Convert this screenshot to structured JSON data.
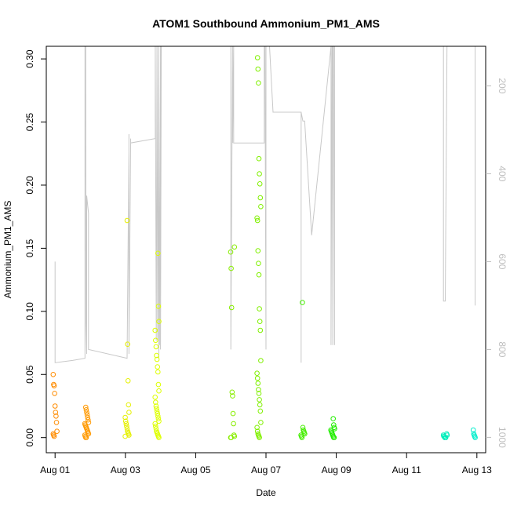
{
  "chart_data": {
    "type": "scatter",
    "title": "ATOM1 Southbound Ammonium_PM1_AMS",
    "xlabel": "Date",
    "ylabel": "Ammonium_PM1_AMS",
    "x_ticks": [
      "Aug 01",
      "Aug 03",
      "Aug 05",
      "Aug 07",
      "Aug 09",
      "Aug 11",
      "Aug 13"
    ],
    "xlim_days": [
      0.75,
      13.25
    ],
    "ylim": [
      -0.012,
      0.31
    ],
    "y_ticks": [
      "0.00",
      "0.05",
      "0.10",
      "0.15",
      "0.20",
      "0.25",
      "0.30"
    ],
    "y_tick_values": [
      0,
      0.05,
      0.1,
      0.15,
      0.2,
      0.25,
      0.3
    ],
    "y2_ticks": [
      "200",
      "400",
      "600",
      "800",
      "1000"
    ],
    "y2_tick_values": [
      200,
      400,
      600,
      800,
      1000
    ],
    "y2lim": [
      1035,
      110
    ],
    "y2_reversed": true,
    "grid": false,
    "points": [
      {
        "day": 1.0,
        "color": "#ff8c00",
        "values": [
          0.05,
          0.042,
          0.041,
          0.035,
          0.025,
          0.02,
          0.017,
          0.012,
          0.005,
          0.003,
          0.002,
          0.001
        ]
      },
      {
        "day": 1.9,
        "color": "#ff9900",
        "values": [
          0.024,
          0.022,
          0.02,
          0.018,
          0.016,
          0.014,
          0.012,
          0.011,
          0.01,
          0.009,
          0.008,
          0.007,
          0.006,
          0.005,
          0.004,
          0.003,
          0.002,
          0.001,
          0.0,
          0.0
        ]
      },
      {
        "day": 3.05,
        "color": "#e5f000",
        "values": [
          0.172,
          0.074,
          0.045,
          0.026,
          0.02,
          0.016,
          0.013,
          0.011,
          0.009,
          0.007,
          0.005,
          0.004,
          0.003,
          0.002,
          0.001
        ]
      },
      {
        "day": 3.9,
        "color": "#ddff00",
        "values": [
          0.146,
          0.104,
          0.092,
          0.085,
          0.077,
          0.072,
          0.065,
          0.062,
          0.056,
          0.052,
          0.042,
          0.037,
          0.032,
          0.028,
          0.025,
          0.023,
          0.021,
          0.019,
          0.017,
          0.015,
          0.013,
          0.011,
          0.009,
          0.007,
          0.005,
          0.004,
          0.003,
          0.002,
          0.001,
          0.0
        ]
      },
      {
        "day": 6.05,
        "color": "#88ee00",
        "values": [
          0.151,
          0.147,
          0.134,
          0.103,
          0.036,
          0.033,
          0.019,
          0.011,
          0.002,
          0.001,
          0.0,
          0.0
        ]
      },
      {
        "day": 6.8,
        "color": "#80f000",
        "values": [
          0.301,
          0.292,
          0.281,
          0.221,
          0.209,
          0.201,
          0.19,
          0.183,
          0.174,
          0.172,
          0.148,
          0.138,
          0.129,
          0.102,
          0.092,
          0.085,
          0.061,
          0.051,
          0.047,
          0.043,
          0.038,
          0.035,
          0.03,
          0.026,
          0.021,
          0.012,
          0.008,
          0.005,
          0.003,
          0.002,
          0.001,
          0.0
        ]
      },
      {
        "day": 8.05,
        "color": "#44ee00",
        "values": [
          0.107,
          0.008,
          0.006,
          0.005,
          0.004,
          0.003,
          0.002,
          0.001,
          0.0
        ]
      },
      {
        "day": 8.9,
        "color": "#22ee00",
        "values": [
          0.015,
          0.01,
          0.008,
          0.007,
          0.006,
          0.005,
          0.004,
          0.003,
          0.002,
          0.001,
          0.0,
          0.0
        ]
      },
      {
        "day": 12.1,
        "color": "#00eebb",
        "values": [
          0.003,
          0.002,
          0.002,
          0.001,
          0.001,
          0.0,
          0.0,
          0.0
        ]
      },
      {
        "day": 12.95,
        "color": "#00eecc",
        "values": [
          0.006,
          0.003,
          0.002,
          0.001,
          0.0
        ]
      }
    ],
    "track": {
      "color": "#c8c8c8",
      "day": [
        1.0,
        1.0,
        1.0,
        1.5,
        1.85,
        1.85,
        1.85,
        1.86,
        1.87,
        1.88,
        1.9,
        1.9,
        1.9,
        1.95,
        1.95,
        1.95,
        3.05,
        3.1,
        3.1,
        3.1,
        3.1,
        3.15,
        3.15,
        3.15,
        3.15,
        3.85,
        3.85,
        3.85,
        3.88,
        3.9,
        3.92,
        3.95,
        3.97,
        4.0,
        4.0,
        4.02,
        4.02,
        4.02,
        4.02,
        3.95,
        3.95,
        3.95,
        5.0,
        6.0,
        6.0,
        6.05,
        6.05,
        6.05,
        6.05,
        6.08,
        6.08,
        6.08,
        6.08,
        6.1,
        6.1,
        6.95,
        6.95,
        6.95,
        6.95,
        6.95,
        6.97,
        7.0,
        7.0,
        7.02,
        7.02,
        7.1,
        7.1,
        7.1,
        7.1,
        7.2,
        8.0,
        8.0,
        8.0,
        8.05,
        8.1,
        8.1,
        8.3,
        8.85,
        8.85,
        8.88,
        8.9,
        8.9,
        8.92,
        8.95,
        8.95,
        8.95,
        9.0,
        12.05,
        12.05,
        12.05,
        12.1,
        12.15,
        12.2,
        12.95,
        12.95,
        12.95
      ],
      "alt": [
        600,
        630,
        830,
        825,
        820,
        640,
        110,
        110,
        110,
        740,
        810,
        480,
        450,
        490,
        610,
        800,
        820,
        350,
        340,
        310,
        810,
        340,
        320,
        340,
        330,
        320,
        110,
        110,
        780,
        110,
        780,
        110,
        790,
        110,
        800,
        110,
        110,
        110,
        110,
        820,
        820,
        110,
        110,
        110,
        800,
        110,
        330,
        110,
        330,
        110,
        110,
        330,
        330,
        330,
        330,
        330,
        110,
        110,
        110,
        110,
        110,
        800,
        110,
        110,
        110,
        110,
        110,
        110,
        110,
        260,
        260,
        830,
        260,
        280,
        280,
        280,
        540,
        110,
        790,
        110,
        790,
        110,
        110,
        790,
        110,
        110,
        110,
        110,
        690,
        690,
        690,
        110,
        110,
        110,
        110,
        700
      ]
    }
  }
}
